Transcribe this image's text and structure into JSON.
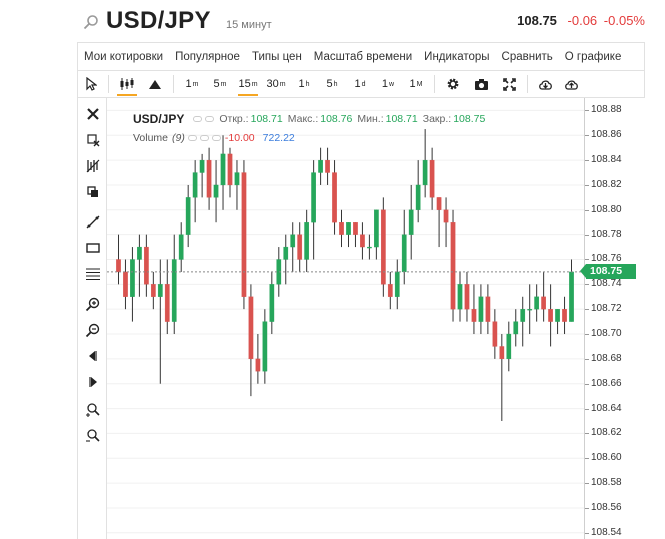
{
  "header": {
    "symbol": "USD/JPY",
    "interval": "15 минут",
    "last_price": "108.75",
    "change": "-0.06",
    "change_pct": "-0.05%"
  },
  "menu": {
    "items": [
      "Мои котировки",
      "Популярное",
      "Типы цен",
      "Масштаб времени",
      "Индикаторы",
      "Сравнить",
      "О графике"
    ]
  },
  "toolbar": {
    "timeframes": [
      {
        "num": "1",
        "unit": "m"
      },
      {
        "num": "5",
        "unit": "m"
      },
      {
        "num": "15",
        "unit": "m",
        "active": true
      },
      {
        "num": "30",
        "unit": "m"
      },
      {
        "num": "1",
        "unit": "h"
      },
      {
        "num": "5",
        "unit": "h"
      },
      {
        "num": "1",
        "unit": "d"
      },
      {
        "num": "1",
        "unit": "w"
      },
      {
        "num": "1",
        "unit": "M"
      }
    ]
  },
  "legend": {
    "symbol": "USD/JPY",
    "open_label": "Откр.:",
    "open": "108.71",
    "high_label": "Макс.:",
    "high": "108.76",
    "low_label": "Мин.:",
    "low": "108.71",
    "close_label": "Закр.:",
    "close": "108.75",
    "volume_label": "Volume",
    "volume_period": "(9)",
    "volume_change": "-10.00",
    "volume_value": "722.22"
  },
  "colors": {
    "up": "#26a65b",
    "down": "#d9534f",
    "accent": "#f5a623"
  },
  "chart_data": {
    "type": "candlestick",
    "symbol": "USD/JPY",
    "interval": "15 минут",
    "y_axis": {
      "ticks": [
        "108.88",
        "108.86",
        "108.84",
        "108.82",
        "108.80",
        "108.78",
        "108.76",
        "108.74",
        "108.72",
        "108.70",
        "108.68",
        "108.66",
        "108.64",
        "108.62",
        "108.60",
        "108.58",
        "108.56",
        "108.54"
      ],
      "range": [
        108.535,
        108.89
      ]
    },
    "current_price": 108.75,
    "grid": true,
    "candles": [
      {
        "o": 108.76,
        "h": 108.78,
        "l": 108.74,
        "c": 108.75
      },
      {
        "o": 108.75,
        "h": 108.76,
        "l": 108.72,
        "c": 108.73
      },
      {
        "o": 108.73,
        "h": 108.77,
        "l": 108.71,
        "c": 108.76
      },
      {
        "o": 108.76,
        "h": 108.78,
        "l": 108.73,
        "c": 108.77
      },
      {
        "o": 108.77,
        "h": 108.78,
        "l": 108.73,
        "c": 108.74
      },
      {
        "o": 108.74,
        "h": 108.75,
        "l": 108.72,
        "c": 108.73
      },
      {
        "o": 108.73,
        "h": 108.76,
        "l": 108.66,
        "c": 108.74
      },
      {
        "o": 108.74,
        "h": 108.76,
        "l": 108.7,
        "c": 108.71
      },
      {
        "o": 108.71,
        "h": 108.78,
        "l": 108.7,
        "c": 108.76
      },
      {
        "o": 108.76,
        "h": 108.79,
        "l": 108.75,
        "c": 108.78
      },
      {
        "o": 108.78,
        "h": 108.82,
        "l": 108.77,
        "c": 108.81
      },
      {
        "o": 108.81,
        "h": 108.84,
        "l": 108.79,
        "c": 108.83
      },
      {
        "o": 108.83,
        "h": 108.845,
        "l": 108.81,
        "c": 108.84
      },
      {
        "o": 108.84,
        "h": 108.85,
        "l": 108.8,
        "c": 108.81
      },
      {
        "o": 108.81,
        "h": 108.84,
        "l": 108.79,
        "c": 108.82
      },
      {
        "o": 108.82,
        "h": 108.86,
        "l": 108.8,
        "c": 108.845
      },
      {
        "o": 108.845,
        "h": 108.85,
        "l": 108.81,
        "c": 108.82
      },
      {
        "o": 108.82,
        "h": 108.84,
        "l": 108.8,
        "c": 108.83
      },
      {
        "o": 108.83,
        "h": 108.84,
        "l": 108.72,
        "c": 108.73
      },
      {
        "o": 108.73,
        "h": 108.74,
        "l": 108.65,
        "c": 108.68
      },
      {
        "o": 108.68,
        "h": 108.7,
        "l": 108.66,
        "c": 108.67
      },
      {
        "o": 108.67,
        "h": 108.72,
        "l": 108.66,
        "c": 108.71
      },
      {
        "o": 108.71,
        "h": 108.75,
        "l": 108.7,
        "c": 108.74
      },
      {
        "o": 108.74,
        "h": 108.77,
        "l": 108.73,
        "c": 108.76
      },
      {
        "o": 108.76,
        "h": 108.78,
        "l": 108.74,
        "c": 108.77
      },
      {
        "o": 108.77,
        "h": 108.79,
        "l": 108.75,
        "c": 108.78
      },
      {
        "o": 108.78,
        "h": 108.79,
        "l": 108.75,
        "c": 108.76
      },
      {
        "o": 108.76,
        "h": 108.8,
        "l": 108.75,
        "c": 108.79
      },
      {
        "o": 108.79,
        "h": 108.84,
        "l": 108.76,
        "c": 108.83
      },
      {
        "o": 108.83,
        "h": 108.85,
        "l": 108.82,
        "c": 108.84
      },
      {
        "o": 108.84,
        "h": 108.85,
        "l": 108.82,
        "c": 108.83
      },
      {
        "o": 108.83,
        "h": 108.84,
        "l": 108.78,
        "c": 108.79
      },
      {
        "o": 108.79,
        "h": 108.8,
        "l": 108.77,
        "c": 108.78
      },
      {
        "o": 108.78,
        "h": 108.79,
        "l": 108.77,
        "c": 108.79
      },
      {
        "o": 108.79,
        "h": 108.79,
        "l": 108.77,
        "c": 108.78
      },
      {
        "o": 108.78,
        "h": 108.79,
        "l": 108.76,
        "c": 108.77
      },
      {
        "o": 108.77,
        "h": 108.78,
        "l": 108.76,
        "c": 108.77
      },
      {
        "o": 108.77,
        "h": 108.8,
        "l": 108.76,
        "c": 108.8
      },
      {
        "o": 108.8,
        "h": 108.81,
        "l": 108.73,
        "c": 108.74
      },
      {
        "o": 108.74,
        "h": 108.75,
        "l": 108.72,
        "c": 108.73
      },
      {
        "o": 108.73,
        "h": 108.76,
        "l": 108.72,
        "c": 108.75
      },
      {
        "o": 108.75,
        "h": 108.8,
        "l": 108.74,
        "c": 108.78
      },
      {
        "o": 108.78,
        "h": 108.82,
        "l": 108.76,
        "c": 108.8
      },
      {
        "o": 108.8,
        "h": 108.84,
        "l": 108.79,
        "c": 108.82
      },
      {
        "o": 108.82,
        "h": 108.865,
        "l": 108.81,
        "c": 108.84
      },
      {
        "o": 108.84,
        "h": 108.85,
        "l": 108.8,
        "c": 108.81
      },
      {
        "o": 108.81,
        "h": 108.81,
        "l": 108.77,
        "c": 108.8
      },
      {
        "o": 108.8,
        "h": 108.81,
        "l": 108.77,
        "c": 108.79
      },
      {
        "o": 108.79,
        "h": 108.8,
        "l": 108.71,
        "c": 108.72
      },
      {
        "o": 108.72,
        "h": 108.75,
        "l": 108.71,
        "c": 108.74
      },
      {
        "o": 108.74,
        "h": 108.75,
        "l": 108.71,
        "c": 108.72
      },
      {
        "o": 108.72,
        "h": 108.74,
        "l": 108.7,
        "c": 108.71
      },
      {
        "o": 108.71,
        "h": 108.74,
        "l": 108.7,
        "c": 108.73
      },
      {
        "o": 108.73,
        "h": 108.74,
        "l": 108.7,
        "c": 108.71
      },
      {
        "o": 108.71,
        "h": 108.72,
        "l": 108.68,
        "c": 108.69
      },
      {
        "o": 108.69,
        "h": 108.7,
        "l": 108.63,
        "c": 108.68
      },
      {
        "o": 108.68,
        "h": 108.71,
        "l": 108.67,
        "c": 108.7
      },
      {
        "o": 108.7,
        "h": 108.72,
        "l": 108.69,
        "c": 108.71
      },
      {
        "o": 108.71,
        "h": 108.73,
        "l": 108.69,
        "c": 108.72
      },
      {
        "o": 108.72,
        "h": 108.74,
        "l": 108.7,
        "c": 108.72
      },
      {
        "o": 108.72,
        "h": 108.74,
        "l": 108.71,
        "c": 108.73
      },
      {
        "o": 108.73,
        "h": 108.75,
        "l": 108.71,
        "c": 108.72
      },
      {
        "o": 108.72,
        "h": 108.74,
        "l": 108.69,
        "c": 108.71
      },
      {
        "o": 108.71,
        "h": 108.72,
        "l": 108.7,
        "c": 108.72
      },
      {
        "o": 108.72,
        "h": 108.73,
        "l": 108.7,
        "c": 108.71
      },
      {
        "o": 108.71,
        "h": 108.76,
        "l": 108.71,
        "c": 108.75
      }
    ]
  }
}
